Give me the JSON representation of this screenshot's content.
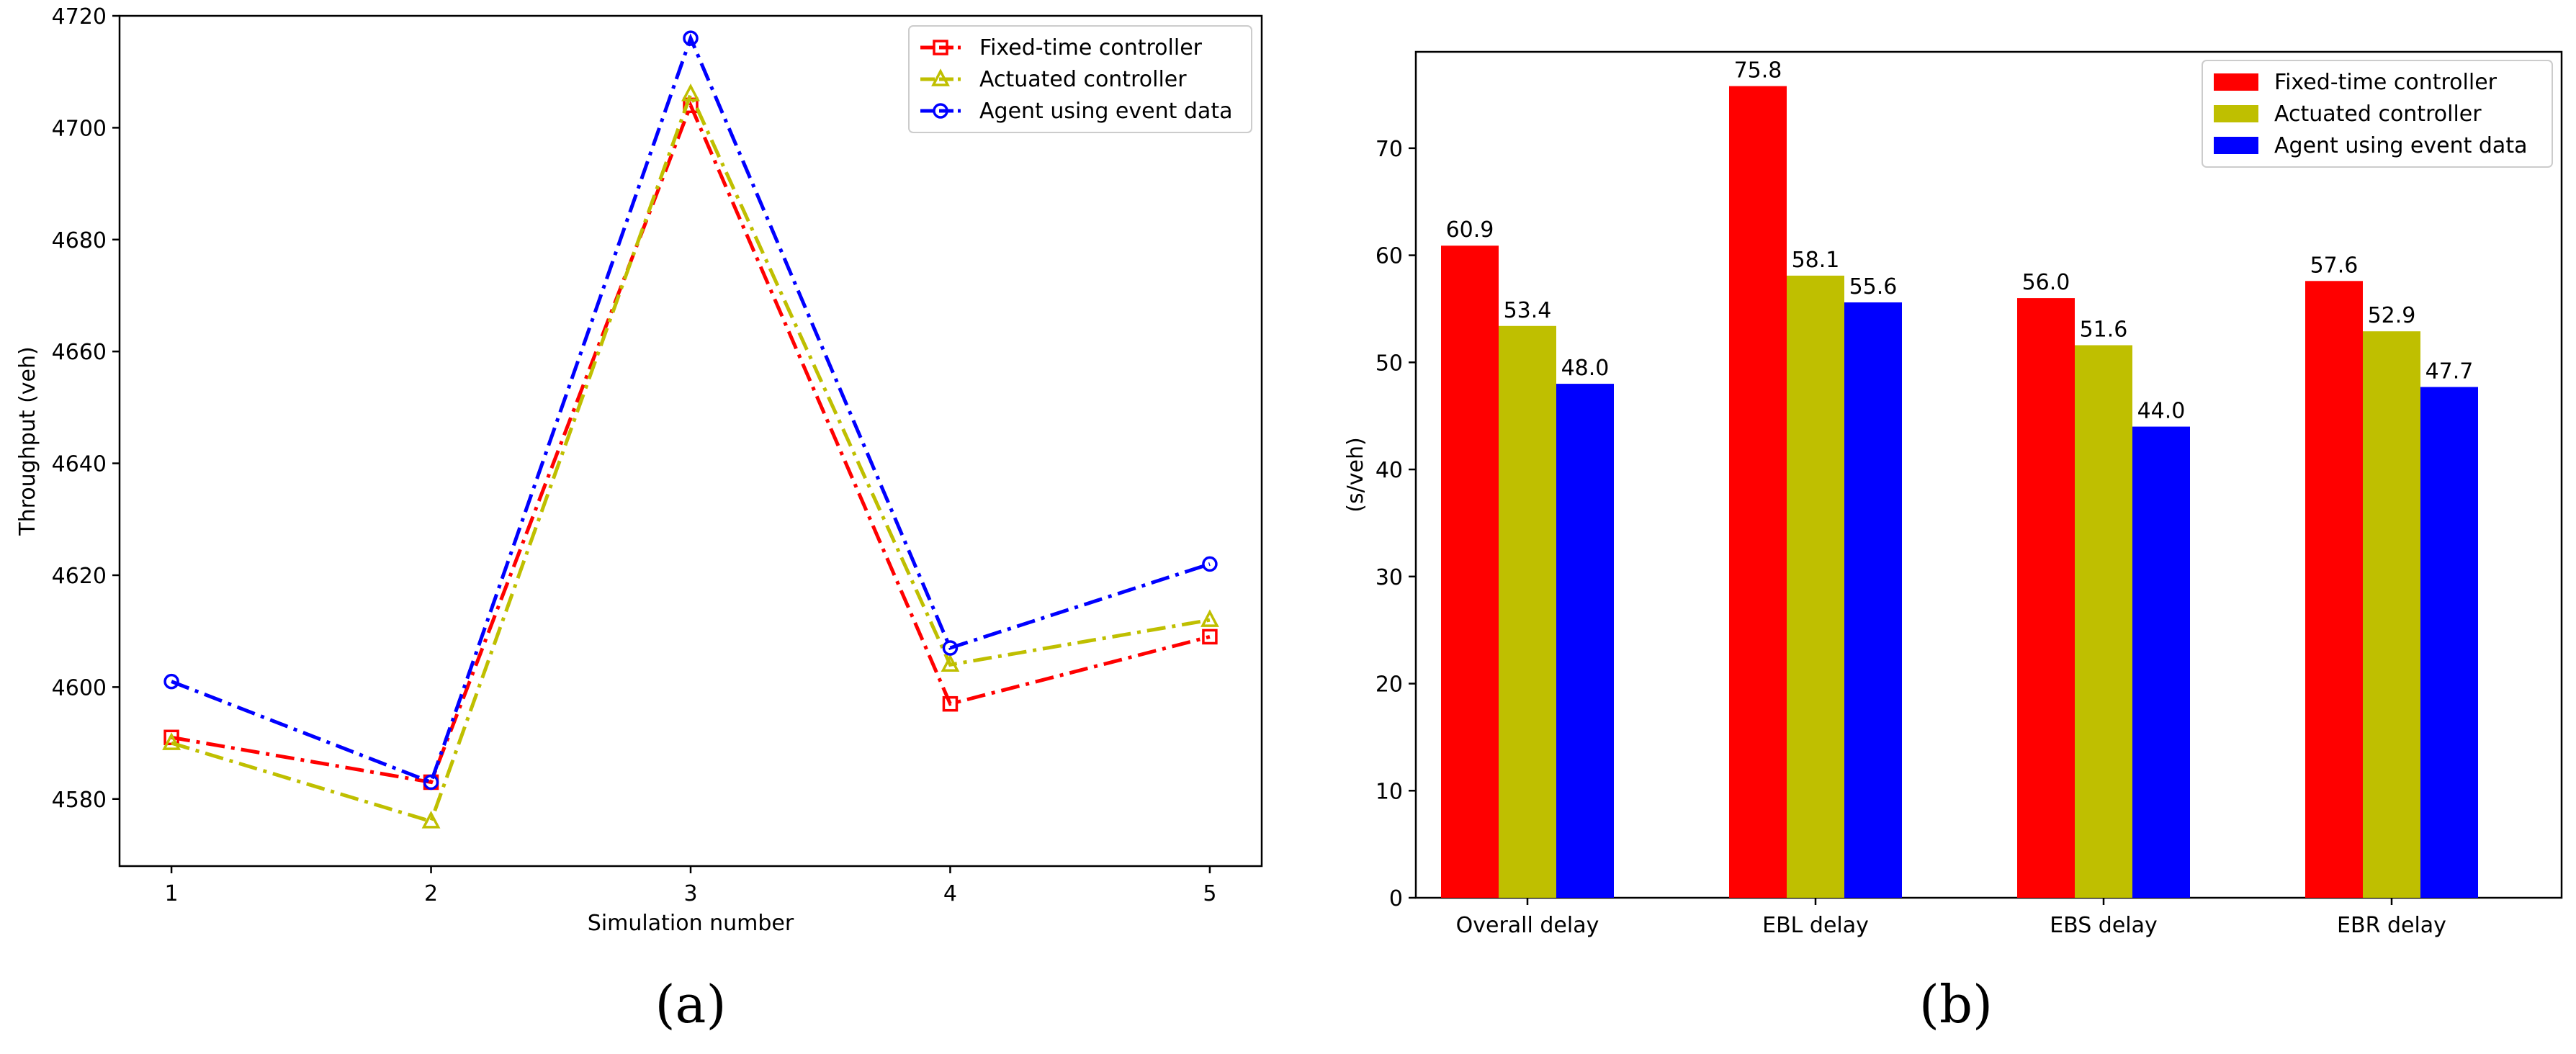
{
  "chart_data": [
    {
      "type": "line",
      "panel_label": "(a)",
      "xlabel": "Simulation number",
      "ylabel": "Throughput (veh)",
      "x": [
        1,
        2,
        3,
        4,
        5
      ],
      "xticks": [
        "1",
        "2",
        "3",
        "4",
        "5"
      ],
      "xlim": [
        0.8,
        5.2
      ],
      "ylim": [
        4568,
        4720
      ],
      "yticks": [
        4580,
        4600,
        4620,
        4640,
        4660,
        4680,
        4700,
        4720
      ],
      "legend_position": "top-right",
      "series": [
        {
          "name": "Fixed-time controller",
          "values": [
            4591,
            4583,
            4704,
            4597,
            4609
          ],
          "color": "#ff0000",
          "marker": "square",
          "dash": "dash-dot"
        },
        {
          "name": "Actuated controller",
          "values": [
            4590,
            4576,
            4706,
            4604,
            4612
          ],
          "color": "#bfbf00",
          "marker": "triangle",
          "dash": "dash-dot"
        },
        {
          "name": "Agent using event data",
          "values": [
            4601,
            4583,
            4716,
            4607,
            4622
          ],
          "color": "#0000ff",
          "marker": "circle",
          "dash": "dash-dot"
        }
      ]
    },
    {
      "type": "bar",
      "panel_label": "(b)",
      "xlabel": "",
      "ylabel": "(s/veh)",
      "categories": [
        "Overall delay",
        "EBL delay",
        "EBS delay",
        "EBR delay"
      ],
      "ylim": [
        0,
        79
      ],
      "yticks": [
        0,
        10,
        20,
        30,
        40,
        50,
        60,
        70
      ],
      "legend_position": "top-right",
      "series": [
        {
          "name": "Fixed-time controller",
          "values": [
            60.9,
            75.8,
            56.0,
            57.6
          ],
          "labels": [
            "60.9",
            "75.8",
            "56.0",
            "57.6"
          ],
          "color": "#ff0000"
        },
        {
          "name": "Actuated controller",
          "values": [
            53.4,
            58.1,
            51.6,
            52.9
          ],
          "labels": [
            "53.4",
            "58.1",
            "51.6",
            "52.9"
          ],
          "color": "#bfbf00"
        },
        {
          "name": "Agent using event data",
          "values": [
            48.0,
            55.6,
            44.0,
            47.7
          ],
          "labels": [
            "48.0",
            "55.6",
            "44.0",
            "47.7"
          ],
          "color": "#0000ff"
        }
      ]
    }
  ]
}
